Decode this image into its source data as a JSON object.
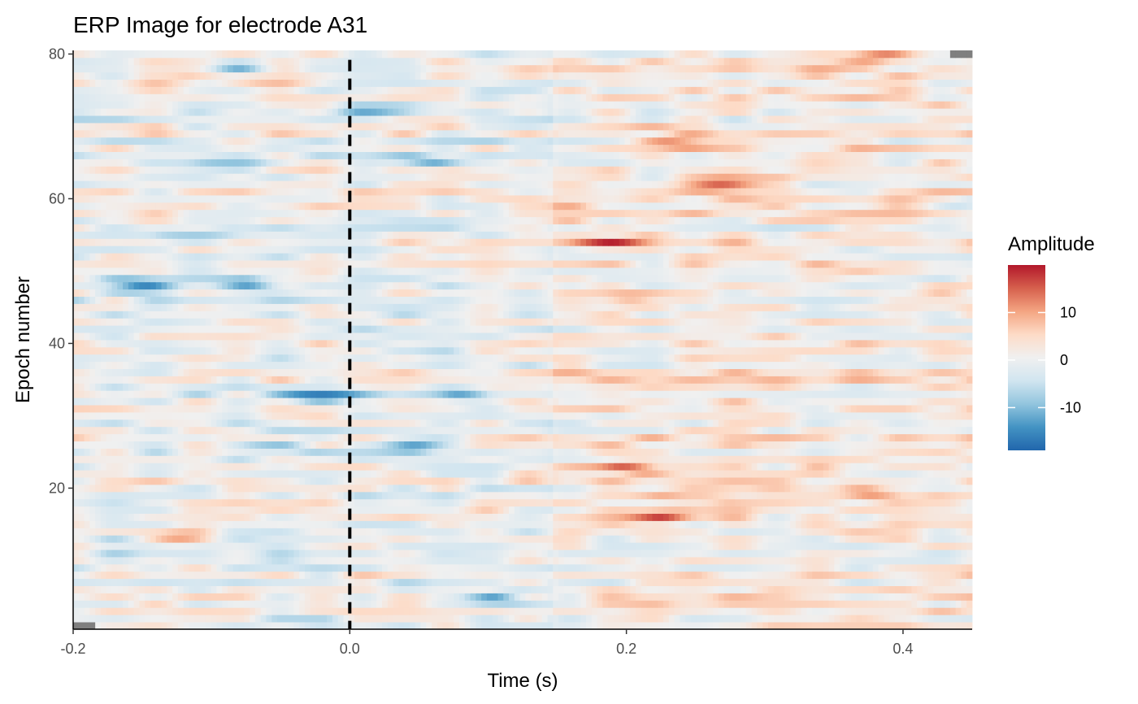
{
  "chart_data": {
    "type": "heatmap",
    "title": "ERP Image for electrode A31",
    "xlabel": "Time (s)",
    "ylabel": "Epoch number",
    "xlim": [
      -0.2,
      0.45
    ],
    "ylim": [
      0.5,
      80.5
    ],
    "x_ticks": [
      -0.2,
      0.0,
      0.2,
      0.4
    ],
    "x_tick_labels": [
      "-0.2",
      "0.0",
      "0.2",
      "0.4"
    ],
    "y_ticks": [
      20,
      40,
      60,
      80
    ],
    "y_tick_labels": [
      "20",
      "40",
      "60",
      "80"
    ],
    "n_epochs": 80,
    "time_start": -0.2,
    "time_end": 0.45,
    "time_step": 0.004,
    "stimulus_onset": 0.0,
    "grid": false,
    "colorscale": {
      "name": "Amplitude",
      "min": -19,
      "max": 20,
      "colors": [
        "#2166ac",
        "#4393c3",
        "#92c5de",
        "#d1e5f0",
        "#f0f0f0",
        "#fddbc7",
        "#f4a582",
        "#d6604d",
        "#b2182b"
      ],
      "ticks": [
        -10,
        0,
        10
      ],
      "tick_labels": [
        "-10",
        "0",
        "10"
      ]
    },
    "hotspots": [
      {
        "epoch": 54,
        "time": 0.19,
        "amplitude": 18
      },
      {
        "epoch": 23,
        "time": 0.2,
        "amplitude": 14
      },
      {
        "epoch": 46,
        "time": 0.21,
        "amplitude": 11
      },
      {
        "epoch": 62,
        "time": 0.27,
        "amplitude": 11
      },
      {
        "epoch": 68,
        "time": 0.24,
        "amplitude": 9
      },
      {
        "epoch": 19,
        "time": 0.25,
        "amplitude": 10
      },
      {
        "epoch": 16,
        "time": 0.23,
        "amplitude": 10
      },
      {
        "epoch": 19,
        "time": 0.39,
        "amplitude": 9
      },
      {
        "epoch": 76,
        "time": -0.05,
        "amplitude": 12
      },
      {
        "epoch": 76,
        "time": -0.14,
        "amplitude": 10
      },
      {
        "epoch": 13,
        "time": -0.12,
        "amplitude": 11
      },
      {
        "epoch": 80,
        "time": 0.38,
        "amplitude": 12
      },
      {
        "epoch": 33,
        "time": -0.02,
        "amplitude": -15
      },
      {
        "epoch": 33,
        "time": 0.08,
        "amplitude": -14
      },
      {
        "epoch": 48,
        "time": -0.15,
        "amplitude": -13
      },
      {
        "epoch": 48,
        "time": -0.07,
        "amplitude": -11
      },
      {
        "epoch": 65,
        "time": -0.08,
        "amplitude": -12
      },
      {
        "epoch": 65,
        "time": 0.05,
        "amplitude": -11
      },
      {
        "epoch": 26,
        "time": -0.05,
        "amplitude": -12
      },
      {
        "epoch": 26,
        "time": 0.05,
        "amplitude": -11
      },
      {
        "epoch": 55,
        "time": -0.11,
        "amplitude": -11
      },
      {
        "epoch": 59,
        "time": 0.44,
        "amplitude": -11
      },
      {
        "epoch": 72,
        "time": 0.01,
        "amplitude": -12
      },
      {
        "epoch": 5,
        "time": 0.11,
        "amplitude": -10
      },
      {
        "epoch": 78,
        "time": -0.08,
        "amplitude": -10
      }
    ],
    "missing_cells": [
      {
        "epoch": 80,
        "time_from": 0.435,
        "time_to": 0.45
      },
      {
        "epoch": 1,
        "time_from": -0.2,
        "time_to": -0.185
      }
    ]
  }
}
